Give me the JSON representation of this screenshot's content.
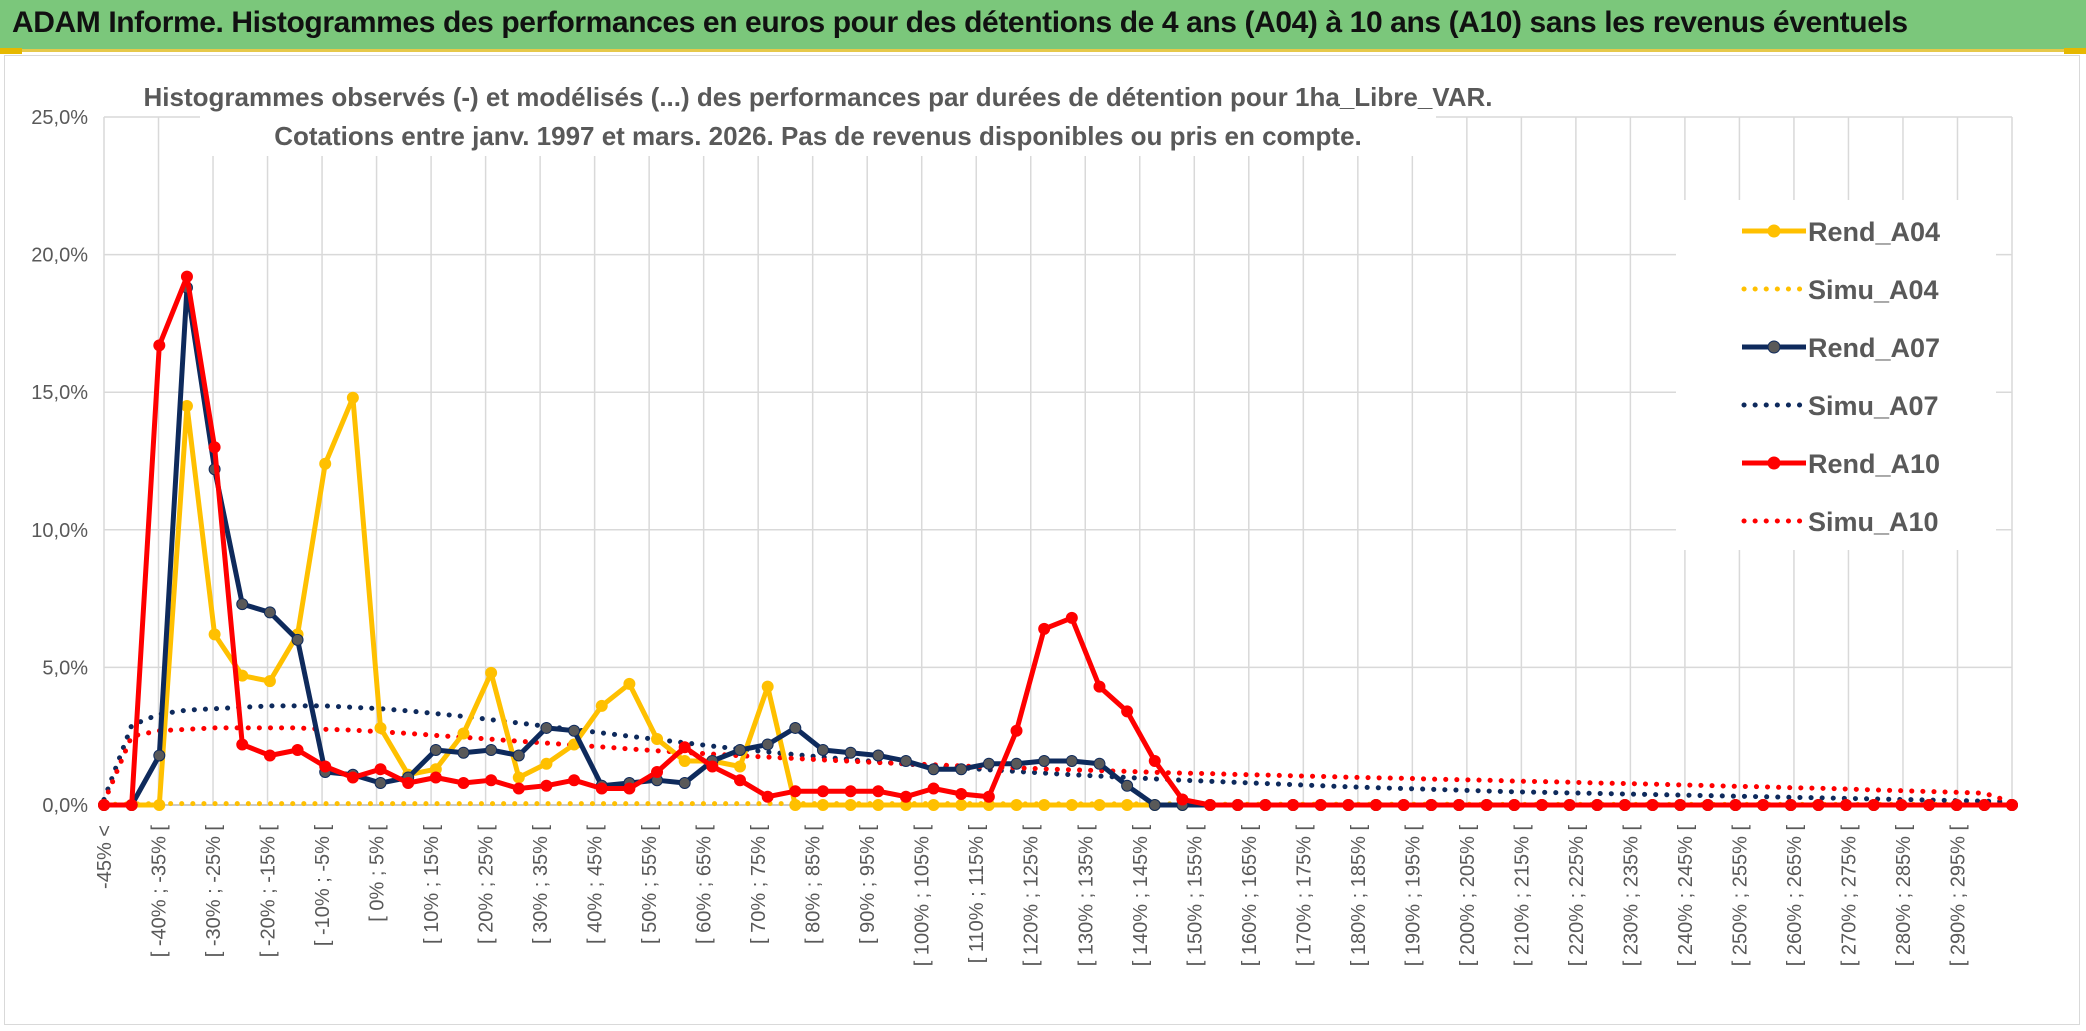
{
  "banner": {
    "title": "ADAM Informe. Histogrammes des performances en euros pour des détentions de 4 ans (A04) à 10 ans (A10) sans les revenus éventuels"
  },
  "chart_data": {
    "type": "line",
    "title_lines": [
      "Histogrammes observés (-) et modélisés (...) des performances par durées de détention pour 1ha_Libre_VAR.",
      "Cotations entre janv. 1997 et mars. 2026. Pas de revenus disponibles ou pris en compte."
    ],
    "ylim": [
      0,
      25
    ],
    "yticks": [
      "0,0%",
      "5,0%",
      "10,0%",
      "15,0%",
      "20,0%",
      "25,0%"
    ],
    "ytick_values": [
      0,
      5,
      10,
      15,
      20,
      25
    ],
    "x_label_slots": 35,
    "x_labels": [
      "-45% <",
      "[ -40% ; -35% [",
      "[ -30% ; -25% [",
      "[ -20% ; -15% [",
      "[ -10% ; -5% [",
      "[ 0% ; 5% [",
      "[ 10% ; 15% [",
      "[ 20% ; 25% [",
      "[ 30% ; 35% [",
      "[ 40% ; 45% [",
      "[ 50% ; 55% [",
      "[ 60% ; 65% [",
      "[ 70% ; 75% [",
      "[ 80% ; 85% [",
      "[ 90% ; 95% [",
      "[ 100% ; 105% [",
      "[ 110% ; 115% [",
      "[ 120% ; 125% [",
      "[ 130% ; 135% [",
      "[ 140% ; 145% [",
      "[ 150% ; 155% [",
      "[ 160% ; 165% [",
      "[ 170% ; 175% [",
      "[ 180% ; 185% [",
      "[ 190% ; 195% [",
      "[ 200% ; 205% [",
      "[ 210% ; 215% [",
      "[ 220% ; 225% [",
      "[ 230% ; 235% [",
      "[ 240% ; 245% [",
      "[ 250% ; 255% [",
      "[ 260% ; 265% [",
      "[ 270% ; 275% [",
      "[ 280% ; 285% [",
      "[ 290% ; 295% ["
    ],
    "legend": [
      "Rend_A04",
      "Simu_A04",
      "Rend_A07",
      "Simu_A07",
      "Rend_A10",
      "Simu_A10"
    ],
    "series": [
      {
        "name": "Rend_A04",
        "kind": "observed",
        "color": "#ffc000",
        "marker": "#ffc000",
        "values": [
          0,
          0,
          0,
          14.5,
          6.2,
          4.7,
          4.5,
          6.2,
          12.4,
          14.8,
          2.8,
          1.1,
          1.3,
          2.6,
          4.8,
          1.0,
          1.5,
          2.2,
          3.6,
          4.4,
          2.4,
          1.6,
          1.6,
          1.4,
          4.3,
          0,
          0,
          0,
          0,
          0,
          0,
          0,
          0,
          0,
          0,
          0,
          0,
          0,
          0,
          0,
          0,
          0,
          0,
          0,
          0,
          0,
          0,
          0,
          0,
          0,
          0,
          0,
          0,
          0,
          0,
          0,
          0,
          0,
          0,
          0,
          0,
          0,
          0,
          0,
          0,
          0,
          0,
          0,
          0,
          0
        ]
      },
      {
        "name": "Simu_A04",
        "kind": "simulated",
        "color": "#ffc000",
        "values": [
          0.02,
          0.04,
          0.05,
          0.05,
          0.05,
          0.05,
          0.05,
          0.05,
          0.05,
          0.05,
          0.05,
          0.05,
          0.05,
          0.05,
          0.05,
          0.05,
          0.05,
          0.05,
          0.05,
          0.05,
          0.05,
          0.05,
          0.05,
          0.05,
          0.05,
          0.05,
          0.05,
          0.05,
          0.05,
          0.05,
          0.05,
          0.05,
          0.05,
          0.04,
          0.04,
          0.04,
          0.04,
          0.04,
          0.04,
          0.04,
          0.03,
          0.03,
          0.03,
          0.03,
          0.03,
          0.03,
          0.03,
          0.03,
          0.03,
          0.03,
          0.02,
          0.02,
          0.02,
          0.02,
          0.02,
          0.02,
          0.02,
          0.02,
          0.02,
          0.02,
          0.02,
          0.02,
          0.02,
          0.02,
          0.02,
          0.02,
          0.02,
          0.02,
          0.01,
          0.01
        ]
      },
      {
        "name": "Rend_A07",
        "kind": "observed",
        "color": "#0e2a5c",
        "marker": "#595959",
        "values": [
          0,
          0,
          1.8,
          18.8,
          12.2,
          7.3,
          7.0,
          6.0,
          1.2,
          1.1,
          0.8,
          1.0,
          2.0,
          1.9,
          2.0,
          1.8,
          2.8,
          2.7,
          0.7,
          0.8,
          0.9,
          0.8,
          1.6,
          2.0,
          2.2,
          2.8,
          2.0,
          1.9,
          1.8,
          1.6,
          1.3,
          1.3,
          1.5,
          1.5,
          1.6,
          1.6,
          1.5,
          0.7,
          0,
          0,
          0,
          0,
          0,
          0,
          0,
          0,
          0,
          0,
          0,
          0,
          0,
          0,
          0,
          0,
          0,
          0,
          0,
          0,
          0,
          0,
          0,
          0,
          0,
          0,
          0,
          0,
          0,
          0,
          0,
          0
        ]
      },
      {
        "name": "Simu_A07",
        "kind": "simulated",
        "color": "#0e2a5c",
        "values": [
          0.2,
          2.9,
          3.3,
          3.45,
          3.5,
          3.55,
          3.6,
          3.6,
          3.6,
          3.55,
          3.5,
          3.42,
          3.32,
          3.22,
          3.1,
          2.98,
          2.86,
          2.74,
          2.62,
          2.5,
          2.38,
          2.26,
          2.14,
          2.03,
          1.93,
          1.83,
          1.74,
          1.65,
          1.57,
          1.49,
          1.42,
          1.35,
          1.28,
          1.22,
          1.16,
          1.1,
          1.05,
          1.0,
          0.95,
          0.9,
          0.86,
          0.82,
          0.78,
          0.74,
          0.7,
          0.66,
          0.63,
          0.6,
          0.57,
          0.54,
          0.51,
          0.48,
          0.46,
          0.44,
          0.42,
          0.4,
          0.38,
          0.36,
          0.34,
          0.32,
          0.3,
          0.28,
          0.26,
          0.24,
          0.22,
          0.2,
          0.18,
          0.16,
          0.14,
          0.12
        ]
      },
      {
        "name": "Rend_A10",
        "kind": "observed",
        "color": "#ff0000",
        "marker": "#ff0000",
        "values": [
          0,
          0,
          16.7,
          19.2,
          13.0,
          2.2,
          1.8,
          2.0,
          1.4,
          1.0,
          1.3,
          0.8,
          1.0,
          0.8,
          0.9,
          0.6,
          0.7,
          0.9,
          0.6,
          0.6,
          1.2,
          2.1,
          1.4,
          0.9,
          0.3,
          0.5,
          0.5,
          0.5,
          0.5,
          0.3,
          0.6,
          0.4,
          0.3,
          2.7,
          6.4,
          6.8,
          4.3,
          3.4,
          1.6,
          0.2,
          0,
          0,
          0,
          0,
          0,
          0,
          0,
          0,
          0,
          0,
          0,
          0,
          0,
          0,
          0,
          0,
          0,
          0,
          0,
          0,
          0,
          0,
          0,
          0,
          0,
          0,
          0,
          0,
          0,
          0
        ]
      },
      {
        "name": "Simu_A10",
        "kind": "simulated",
        "color": "#ff0000",
        "values": [
          0.1,
          2.5,
          2.7,
          2.75,
          2.8,
          2.8,
          2.8,
          2.8,
          2.75,
          2.72,
          2.66,
          2.6,
          2.53,
          2.46,
          2.39,
          2.32,
          2.25,
          2.18,
          2.11,
          2.04,
          1.97,
          1.91,
          1.85,
          1.79,
          1.74,
          1.69,
          1.64,
          1.59,
          1.54,
          1.5,
          1.46,
          1.42,
          1.38,
          1.35,
          1.31,
          1.28,
          1.25,
          1.22,
          1.19,
          1.16,
          1.14,
          1.11,
          1.09,
          1.06,
          1.04,
          1.01,
          0.99,
          0.97,
          0.94,
          0.92,
          0.9,
          0.87,
          0.85,
          0.83,
          0.8,
          0.78,
          0.76,
          0.73,
          0.71,
          0.68,
          0.66,
          0.63,
          0.61,
          0.58,
          0.55,
          0.52,
          0.49,
          0.46,
          0.43,
          0.1
        ]
      }
    ]
  }
}
